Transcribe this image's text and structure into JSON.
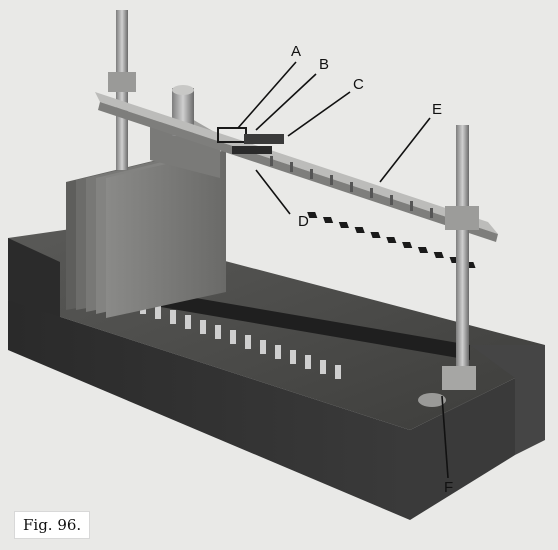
{
  "caption": "Fig. 96.",
  "labels": {
    "a": "A",
    "b": "B",
    "c": "C",
    "d": "D",
    "e": "E",
    "f": "F"
  },
  "colors": {
    "paper": "#e9e9e7",
    "wood_dark": "#2f2f2f",
    "wood_mid": "#4a4a4a",
    "metal_light": "#bdbdbd",
    "metal_dark": "#6f6f6f"
  }
}
